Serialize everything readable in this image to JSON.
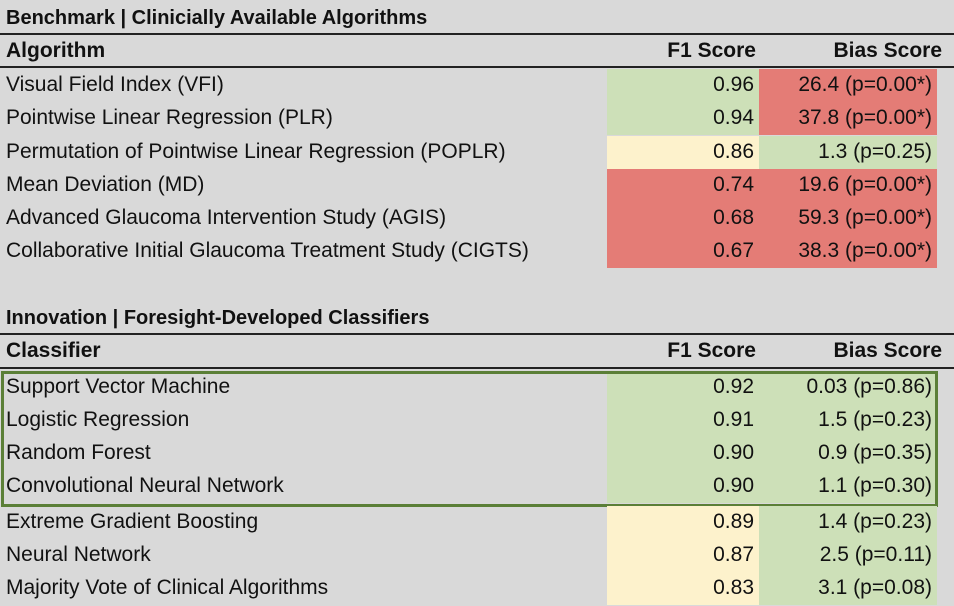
{
  "benchmark": {
    "title": "Benchmark | Clinicially Available Algorithms",
    "col_name": "Algorithm",
    "col_f1": "F1 Score",
    "col_bias": "Bias Score",
    "rows": [
      {
        "name": "Visual Field Index (VFI)",
        "f1": "0.96",
        "bias": "26.4 (p=0.00*)"
      },
      {
        "name": "Pointwise Linear Regression (PLR)",
        "f1": "0.94",
        "bias": "37.8 (p=0.00*)"
      },
      {
        "name": "Permutation of Pointwise Linear Regression (POPLR)",
        "f1": "0.86",
        "bias": "1.3 (p=0.25)"
      },
      {
        "name": "Mean Deviation (MD)",
        "f1": "0.74",
        "bias": "19.6 (p=0.00*)"
      },
      {
        "name": "Advanced Glaucoma Intervention Study (AGIS)",
        "f1": "0.68",
        "bias": "59.3 (p=0.00*)"
      },
      {
        "name": "Collaborative Initial Glaucoma Treatment Study (CIGTS)",
        "f1": "0.67",
        "bias": "38.3 (p=0.00*)"
      }
    ]
  },
  "innovation": {
    "title": "Innovation | Foresight-Developed Classifiers",
    "col_name": "Classifier",
    "col_f1": "F1 Score",
    "col_bias": "Bias Score",
    "rows": [
      {
        "name": "Support Vector Machine",
        "f1": "0.92",
        "bias": "0.03 (p=0.86)"
      },
      {
        "name": "Logistic Regression",
        "f1": "0.91",
        "bias": "1.5 (p=0.23)"
      },
      {
        "name": "Random Forest",
        "f1": "0.90",
        "bias": "0.9 (p=0.35)"
      },
      {
        "name": "Convolutional Neural Network",
        "f1": "0.90",
        "bias": "1.1 (p=0.30)"
      },
      {
        "name": "Extreme Gradient Boosting",
        "f1": "0.89",
        "bias": "1.4 (p=0.23)"
      },
      {
        "name": "Neural Network",
        "f1": "0.87",
        "bias": "2.5 (p=0.11)"
      },
      {
        "name": "Majority Vote of Clinical Algorithms",
        "f1": "0.83",
        "bias": "3.1 (p=0.08)"
      }
    ]
  },
  "colors": {
    "green": "#cde0b8",
    "red": "#e47c76",
    "yellow": "#fdf2cc",
    "highlight_border": "#5b7f37"
  }
}
